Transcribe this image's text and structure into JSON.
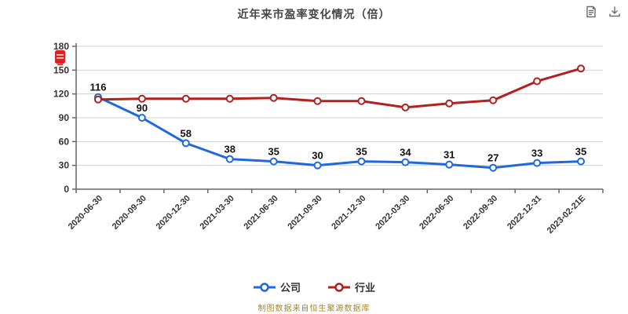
{
  "title": "近年来市盈率变化情况（倍）",
  "toolbar": {
    "icons": [
      {
        "id": "data-view",
        "name": "data-view-icon"
      },
      {
        "id": "save-image",
        "name": "save-image-icon"
      }
    ]
  },
  "legend": [
    {
      "id": "company",
      "label": "公司",
      "color": "#2068e0"
    },
    {
      "id": "industry",
      "label": "行业",
      "color": "#b22020"
    }
  ],
  "footer": "制图数据来自恒生聚源数据库",
  "colors": {
    "company_line": "#2068e0",
    "industry_line": "#b22020",
    "grid": "#d0d0d0",
    "axis": "#666666",
    "axis_label": "#333333",
    "data_label": "#111111",
    "watermark_red": "#e02020"
  },
  "chart_data": {
    "type": "line",
    "title": "近年来市盈率变化情况（倍）",
    "categories": [
      "2020-06-30",
      "2020-09-30",
      "2020-12-30",
      "2021-03-30",
      "2021-06-30",
      "2021-09-30",
      "2021-12-30",
      "2022-03-30",
      "2022-06-30",
      "2022-09-30",
      "2022-12-31",
      "2023-02-21E"
    ],
    "series": [
      {
        "name": "公司",
        "color": "#2068e0",
        "values": [
          116,
          90,
          58,
          38,
          35,
          30,
          35,
          34,
          31,
          27,
          33,
          35
        ],
        "show_labels": true
      },
      {
        "name": "行业",
        "color": "#b22020",
        "values": [
          113,
          114,
          114,
          114,
          115,
          111,
          111,
          103,
          108,
          112,
          136,
          152
        ],
        "show_labels": false
      }
    ],
    "xlabel": "",
    "ylabel": "",
    "ylim": [
      0,
      180
    ],
    "y_ticks": [
      0,
      30,
      60,
      90,
      120,
      150,
      180
    ],
    "grid": true,
    "legend_position": "bottom",
    "x_label_rotation": 45
  }
}
